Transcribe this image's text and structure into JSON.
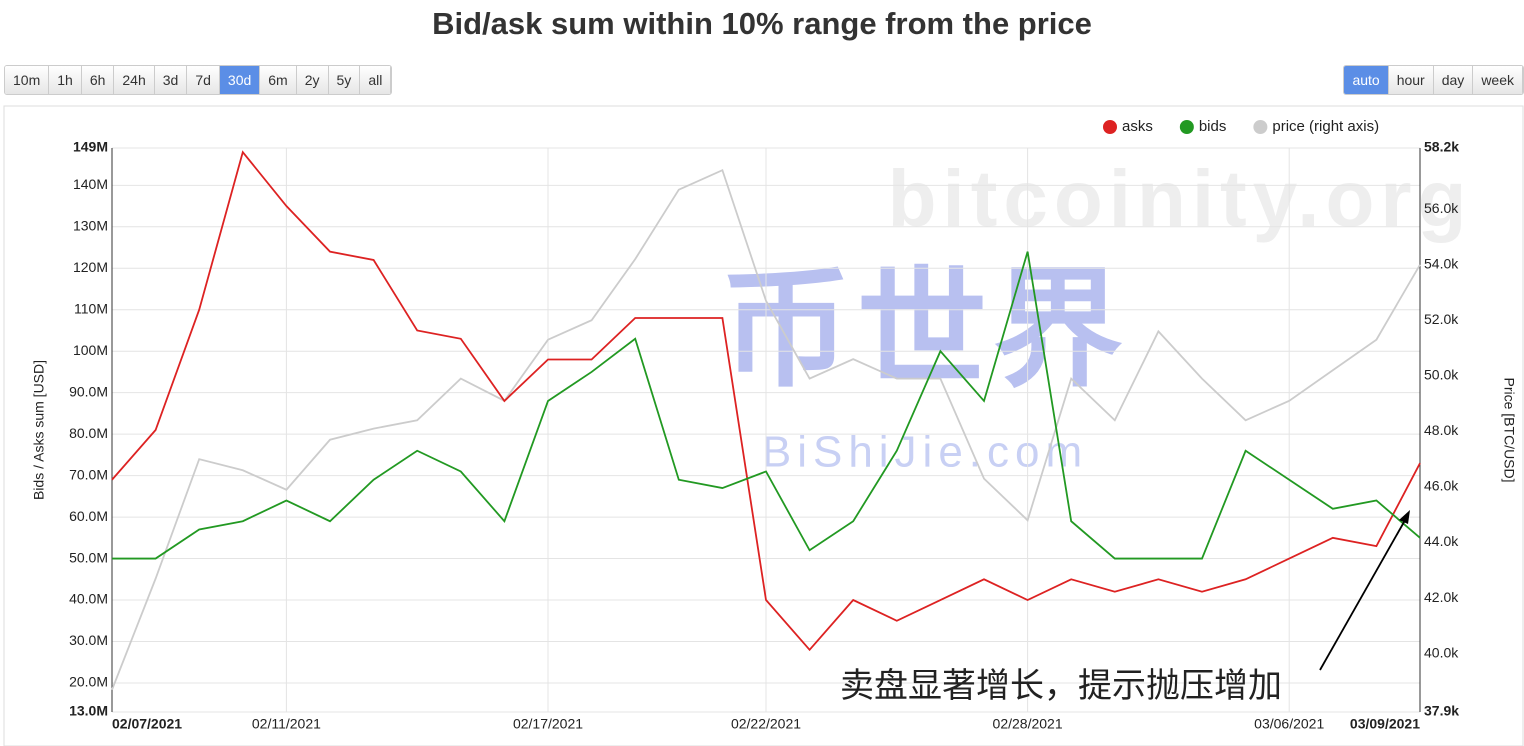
{
  "range_buttons": [
    "10m",
    "1h",
    "6h",
    "24h",
    "3d",
    "7d",
    "30d",
    "6m",
    "2y",
    "5y",
    "all"
  ],
  "active_range": "30d",
  "interval_buttons": [
    "auto",
    "hour",
    "day",
    "week"
  ],
  "active_interval": "auto",
  "chart_data": {
    "type": "line",
    "title": "Bid/ask sum within 10% range from the price",
    "y_label": "Bids / Asks sum [USD]",
    "y2_label": "Price [BTC/USD]",
    "watermarks": [
      "bitcoinity.org",
      "币世界",
      "BiShiJie.com"
    ],
    "annotation": "卖盘显著增长，提示抛压增加",
    "legend": "top-right",
    "grid": true,
    "x": [
      "02/07/2021",
      "02/08/2021",
      "02/09/2021",
      "02/10/2021",
      "02/11/2021",
      "02/12/2021",
      "02/13/2021",
      "02/14/2021",
      "02/15/2021",
      "02/16/2021",
      "02/17/2021",
      "02/18/2021",
      "02/19/2021",
      "02/20/2021",
      "02/21/2021",
      "02/22/2021",
      "02/23/2021",
      "02/24/2021",
      "02/25/2021",
      "02/26/2021",
      "02/27/2021",
      "02/28/2021",
      "03/01/2021",
      "03/02/2021",
      "03/03/2021",
      "03/04/2021",
      "03/05/2021",
      "03/06/2021",
      "03/07/2021",
      "03/08/2021",
      "03/09/2021"
    ],
    "xticks": [
      "02/07/2021",
      "02/11/2021",
      "02/17/2021",
      "02/22/2021",
      "02/28/2021",
      "03/06/2021",
      "03/09/2021"
    ],
    "ylim": [
      13000000,
      149000000
    ],
    "yticks": [
      {
        "value": 13000000,
        "label": "13.0M"
      },
      {
        "value": 20000000,
        "label": "20.0M"
      },
      {
        "value": 30000000,
        "label": "30.0M"
      },
      {
        "value": 40000000,
        "label": "40.0M"
      },
      {
        "value": 50000000,
        "label": "50.0M"
      },
      {
        "value": 60000000,
        "label": "60.0M"
      },
      {
        "value": 70000000,
        "label": "70.0M"
      },
      {
        "value": 80000000,
        "label": "80.0M"
      },
      {
        "value": 90000000,
        "label": "90.0M"
      },
      {
        "value": 100000000,
        "label": "100M"
      },
      {
        "value": 110000000,
        "label": "110M"
      },
      {
        "value": 120000000,
        "label": "120M"
      },
      {
        "value": 130000000,
        "label": "130M"
      },
      {
        "value": 140000000,
        "label": "140M"
      },
      {
        "value": 149000000,
        "label": "149M"
      }
    ],
    "y2lim": [
      37900,
      58200
    ],
    "y2ticks": [
      {
        "value": 37900,
        "label": "37.9k"
      },
      {
        "value": 40000,
        "label": "40.0k"
      },
      {
        "value": 42000,
        "label": "42.0k"
      },
      {
        "value": 44000,
        "label": "44.0k"
      },
      {
        "value": 46000,
        "label": "46.0k"
      },
      {
        "value": 48000,
        "label": "48.0k"
      },
      {
        "value": 50000,
        "label": "50.0k"
      },
      {
        "value": 52000,
        "label": "52.0k"
      },
      {
        "value": 54000,
        "label": "54.0k"
      },
      {
        "value": 56000,
        "label": "56.0k"
      },
      {
        "value": 58200,
        "label": "58.2k"
      }
    ],
    "series": [
      {
        "name": "price (right axis)",
        "color": "#cccccc",
        "axis": "y2",
        "values": [
          38700,
          42700,
          47000,
          46600,
          45900,
          47700,
          48100,
          48400,
          49900,
          49100,
          51300,
          52000,
          54200,
          56700,
          57400,
          52700,
          49900,
          50600,
          49900,
          49900,
          46300,
          44800,
          49900,
          48400,
          51600,
          49900,
          48400,
          49100,
          50200,
          51300,
          54000
        ]
      },
      {
        "name": "asks",
        "color": "#dd2222",
        "values": [
          69000000,
          81000000,
          110000000,
          148000000,
          135000000,
          124000000,
          122000000,
          105000000,
          103000000,
          88000000,
          98000000,
          98000000,
          108000000,
          108000000,
          108000000,
          40000000,
          28000000,
          40000000,
          35000000,
          40000000,
          45000000,
          40000000,
          45000000,
          42000000,
          45000000,
          42000000,
          45000000,
          50000000,
          55000000,
          53000000,
          73000000
        ]
      },
      {
        "name": "bids",
        "color": "#229922",
        "values": [
          50000000,
          50000000,
          57000000,
          59000000,
          64000000,
          59000000,
          69000000,
          76000000,
          71000000,
          59000000,
          88000000,
          95000000,
          103000000,
          69000000,
          67000000,
          71000000,
          52000000,
          59000000,
          76000000,
          100000000,
          88000000,
          124000000,
          59000000,
          50000000,
          50000000,
          50000000,
          76000000,
          69000000,
          62000000,
          64000000,
          55000000
        ]
      }
    ]
  }
}
